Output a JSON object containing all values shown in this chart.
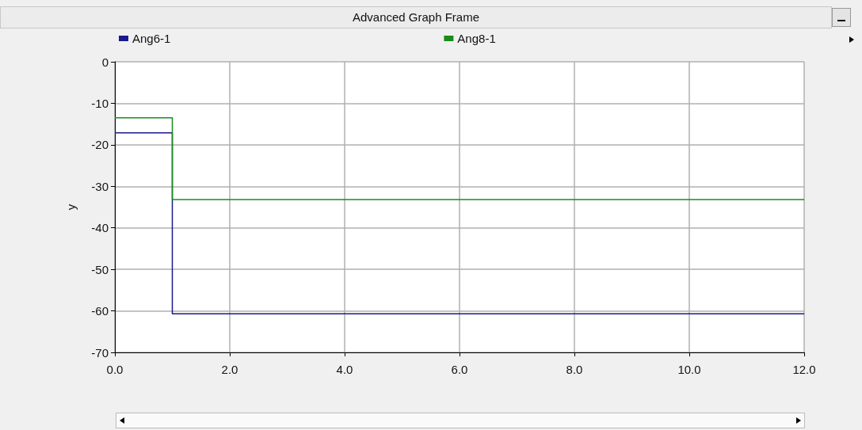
{
  "chart_data": {
    "type": "step",
    "title": "Advanced Graph Frame",
    "ylabel": "y",
    "x": [
      0,
      1,
      12
    ],
    "series": [
      {
        "name": "Ang6-1",
        "color": "#1a1a8c",
        "values": [
          -17.1,
          -60.7,
          -60.7
        ]
      },
      {
        "name": "Ang8-1",
        "color": "#1a8c1a",
        "values": [
          -13.5,
          -33.2,
          -33.2
        ]
      }
    ],
    "xlim": [
      0,
      12
    ],
    "xticks": [
      {
        "value": 0,
        "label": "0.0"
      },
      {
        "value": 2,
        "label": "2.0"
      },
      {
        "value": 4,
        "label": "4.0"
      },
      {
        "value": 6,
        "label": "6.0"
      },
      {
        "value": 8,
        "label": "8.0"
      },
      {
        "value": 10,
        "label": "10.0"
      },
      {
        "value": 12,
        "label": "12.0"
      }
    ],
    "ylim": [
      -70,
      0
    ],
    "yticks": [
      -70,
      -60,
      -50,
      -40,
      -30,
      -20,
      -10,
      0
    ],
    "grid": true,
    "legend": "top left",
    "marker": "none",
    "line_style": "solid"
  }
}
